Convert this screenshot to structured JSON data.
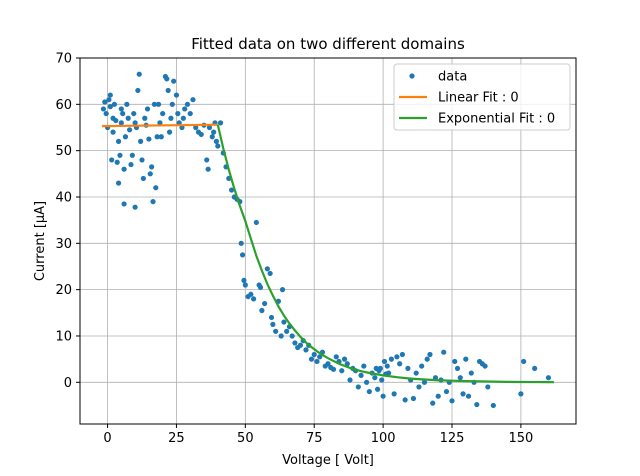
{
  "chart_data": {
    "type": "scatter",
    "title": "Fitted data on two different domains",
    "xlabel": "Voltage [ Volt]",
    "ylabel": "Current [µA]",
    "xlim": [
      -10,
      170
    ],
    "ylim": [
      -9,
      70
    ],
    "xticks": [
      0,
      25,
      50,
      75,
      100,
      125,
      150
    ],
    "yticks": [
      0,
      10,
      20,
      30,
      40,
      50,
      60,
      70
    ],
    "grid": true,
    "legend_position": "top-right",
    "legend": [
      "data",
      "Linear Fit : 0",
      "Exponential Fit : 0"
    ],
    "colors": {
      "data": "#1f77b4",
      "linear": "#ff7f0e",
      "exponential": "#2ca02c",
      "grid": "#b0b0b0"
    },
    "series": [
      {
        "name": "data",
        "kind": "scatter",
        "points": [
          [
            -1.5,
            59
          ],
          [
            -1,
            60.5
          ],
          [
            -0.5,
            58
          ],
          [
            0,
            55
          ],
          [
            0.5,
            61
          ],
          [
            1,
            59.5
          ],
          [
            1,
            62
          ],
          [
            1.5,
            48
          ],
          [
            2,
            57
          ],
          [
            2,
            54
          ],
          [
            2.5,
            60
          ],
          [
            3,
            56.5
          ],
          [
            3.5,
            47.5
          ],
          [
            4,
            52
          ],
          [
            4,
            43
          ],
          [
            4.5,
            49
          ],
          [
            5,
            59
          ],
          [
            5,
            56
          ],
          [
            5.5,
            58
          ],
          [
            6,
            38.5
          ],
          [
            6,
            46
          ],
          [
            6.5,
            53
          ],
          [
            7,
            60
          ],
          [
            7.5,
            57
          ],
          [
            8,
            54.5
          ],
          [
            8.5,
            47
          ],
          [
            9,
            49
          ],
          [
            9.5,
            58
          ],
          [
            10,
            37.8
          ],
          [
            10,
            56
          ],
          [
            10.5,
            55
          ],
          [
            11,
            63
          ],
          [
            11.5,
            66.5
          ],
          [
            12,
            52
          ],
          [
            12.5,
            48
          ],
          [
            13,
            44
          ],
          [
            13.5,
            57
          ],
          [
            14,
            55.5
          ],
          [
            14.5,
            59
          ],
          [
            15,
            52.5
          ],
          [
            15.5,
            45
          ],
          [
            16,
            46.5
          ],
          [
            16.5,
            39
          ],
          [
            17,
            60
          ],
          [
            17.5,
            42
          ],
          [
            18,
            53
          ],
          [
            18.5,
            60
          ],
          [
            19,
            56
          ],
          [
            19.5,
            53
          ],
          [
            20,
            58
          ],
          [
            21,
            66
          ],
          [
            21.5,
            65.5
          ],
          [
            22,
            63
          ],
          [
            22.5,
            54
          ],
          [
            23,
            57
          ],
          [
            23.5,
            60
          ],
          [
            24,
            65
          ],
          [
            25,
            62
          ],
          [
            25.5,
            58
          ],
          [
            26,
            56
          ],
          [
            27,
            55
          ],
          [
            27.5,
            57
          ],
          [
            28,
            59
          ],
          [
            29,
            60
          ],
          [
            30,
            58
          ],
          [
            31,
            61
          ],
          [
            32,
            55
          ],
          [
            33,
            54
          ],
          [
            34,
            53.5
          ],
          [
            35,
            55.5
          ],
          [
            36,
            48
          ],
          [
            36.5,
            46
          ],
          [
            37,
            55
          ],
          [
            38,
            53
          ],
          [
            38.5,
            54
          ],
          [
            39,
            56
          ],
          [
            39.5,
            52
          ],
          [
            40,
            51
          ],
          [
            41,
            56
          ],
          [
            42,
            49.5
          ],
          [
            43,
            46.5
          ],
          [
            44,
            44
          ],
          [
            45,
            41.5
          ],
          [
            46,
            40
          ],
          [
            47,
            39.5
          ],
          [
            48,
            39
          ],
          [
            48.5,
            30
          ],
          [
            49,
            27.5
          ],
          [
            49.5,
            22
          ],
          [
            50,
            21
          ],
          [
            51,
            18.5
          ],
          [
            52,
            19
          ],
          [
            53,
            18
          ],
          [
            54,
            34.5
          ],
          [
            55,
            21
          ],
          [
            55.5,
            20.5
          ],
          [
            56,
            15.5
          ],
          [
            57,
            17
          ],
          [
            58,
            24.5
          ],
          [
            59,
            23.5
          ],
          [
            59.5,
            14
          ],
          [
            60,
            12.5
          ],
          [
            61,
            11
          ],
          [
            62,
            17.5
          ],
          [
            63,
            10
          ],
          [
            63.5,
            20
          ],
          [
            64,
            13
          ],
          [
            65,
            11
          ],
          [
            66,
            12
          ],
          [
            67,
            10
          ],
          [
            68,
            8.5
          ],
          [
            69,
            7.5
          ],
          [
            70,
            8
          ],
          [
            71,
            9
          ],
          [
            72,
            7
          ],
          [
            73,
            8
          ],
          [
            74,
            5
          ],
          [
            75,
            6
          ],
          [
            76,
            4.5
          ],
          [
            77,
            5.5
          ],
          [
            78,
            6.5
          ],
          [
            79,
            3.5
          ],
          [
            80,
            4
          ],
          [
            81,
            3.2
          ],
          [
            82,
            2.8
          ],
          [
            83,
            5.5
          ],
          [
            84,
            4.5
          ],
          [
            85,
            2.5
          ],
          [
            86,
            5
          ],
          [
            87,
            4
          ],
          [
            88,
            0.5
          ],
          [
            89,
            3
          ],
          [
            90,
            2.5
          ],
          [
            91,
            -1
          ],
          [
            92,
            1.5
          ],
          [
            93,
            3.5
          ],
          [
            94,
            0
          ],
          [
            95,
            -2
          ],
          [
            96,
            2
          ],
          [
            97,
            1
          ],
          [
            97.5,
            3
          ],
          [
            98,
            -1.5
          ],
          [
            98.5,
            2.5
          ],
          [
            99,
            3
          ],
          [
            99.5,
            0.5
          ],
          [
            100,
            -3
          ],
          [
            100.5,
            4.5
          ],
          [
            101,
            1.8
          ],
          [
            101.5,
            3.5
          ],
          [
            102,
            2
          ],
          [
            103,
            5
          ],
          [
            104,
            -2.5
          ],
          [
            105,
            5.5
          ],
          [
            106,
            4
          ],
          [
            107,
            6
          ],
          [
            108,
            -3.8
          ],
          [
            109,
            3
          ],
          [
            110,
            0.5
          ],
          [
            111,
            -3.5
          ],
          [
            112,
            2
          ],
          [
            113,
            -1
          ],
          [
            114,
            3.5
          ],
          [
            115,
            0
          ],
          [
            116,
            5
          ],
          [
            117,
            6
          ],
          [
            118,
            -4.5
          ],
          [
            119,
            1
          ],
          [
            120,
            -3
          ],
          [
            121,
            0.5
          ],
          [
            122,
            6.5
          ],
          [
            123,
            -2
          ],
          [
            124,
            0
          ],
          [
            125,
            -4
          ],
          [
            126,
            4.5
          ],
          [
            127,
            3
          ],
          [
            128,
            1
          ],
          [
            129,
            -2.5
          ],
          [
            130,
            5
          ],
          [
            131,
            -3
          ],
          [
            132,
            2
          ],
          [
            133,
            0
          ],
          [
            134,
            -4.8
          ],
          [
            135,
            4.5
          ],
          [
            136,
            4
          ],
          [
            137,
            3.5
          ],
          [
            138,
            -1
          ],
          [
            140,
            -5
          ],
          [
            150,
            -2.5
          ],
          [
            151,
            4.5
          ],
          [
            155,
            3
          ],
          [
            160,
            1
          ]
        ]
      },
      {
        "name": "Linear Fit : 0",
        "kind": "line",
        "points": [
          [
            -2,
            55.3
          ],
          [
            40,
            55.6
          ]
        ]
      },
      {
        "name": "Exponential Fit : 0",
        "kind": "line",
        "points": [
          [
            40,
            55.6
          ],
          [
            42,
            50.5
          ],
          [
            44,
            45.9
          ],
          [
            46,
            41.8
          ],
          [
            48,
            38.1
          ],
          [
            50,
            34.8
          ],
          [
            52,
            31.0
          ],
          [
            54,
            27.3
          ],
          [
            56,
            24.1
          ],
          [
            58,
            21.2
          ],
          [
            60,
            18.7
          ],
          [
            62,
            16.4
          ],
          [
            64,
            14.4
          ],
          [
            66,
            12.7
          ],
          [
            68,
            11.2
          ],
          [
            70,
            9.8
          ],
          [
            72,
            8.6
          ],
          [
            74,
            7.6
          ],
          [
            76,
            6.7
          ],
          [
            78,
            5.9
          ],
          [
            80,
            5.2
          ],
          [
            84,
            4.0
          ],
          [
            88,
            3.1
          ],
          [
            92,
            2.4
          ],
          [
            96,
            1.9
          ],
          [
            100,
            1.5
          ],
          [
            105,
            1.1
          ],
          [
            110,
            0.8
          ],
          [
            115,
            0.6
          ],
          [
            120,
            0.45
          ],
          [
            125,
            0.35
          ],
          [
            130,
            0.25
          ],
          [
            135,
            0.2
          ],
          [
            140,
            0.15
          ],
          [
            145,
            0.1
          ],
          [
            150,
            0.07
          ],
          [
            155,
            0.05
          ],
          [
            160,
            0.03
          ],
          [
            162,
            0.02
          ]
        ]
      }
    ]
  }
}
